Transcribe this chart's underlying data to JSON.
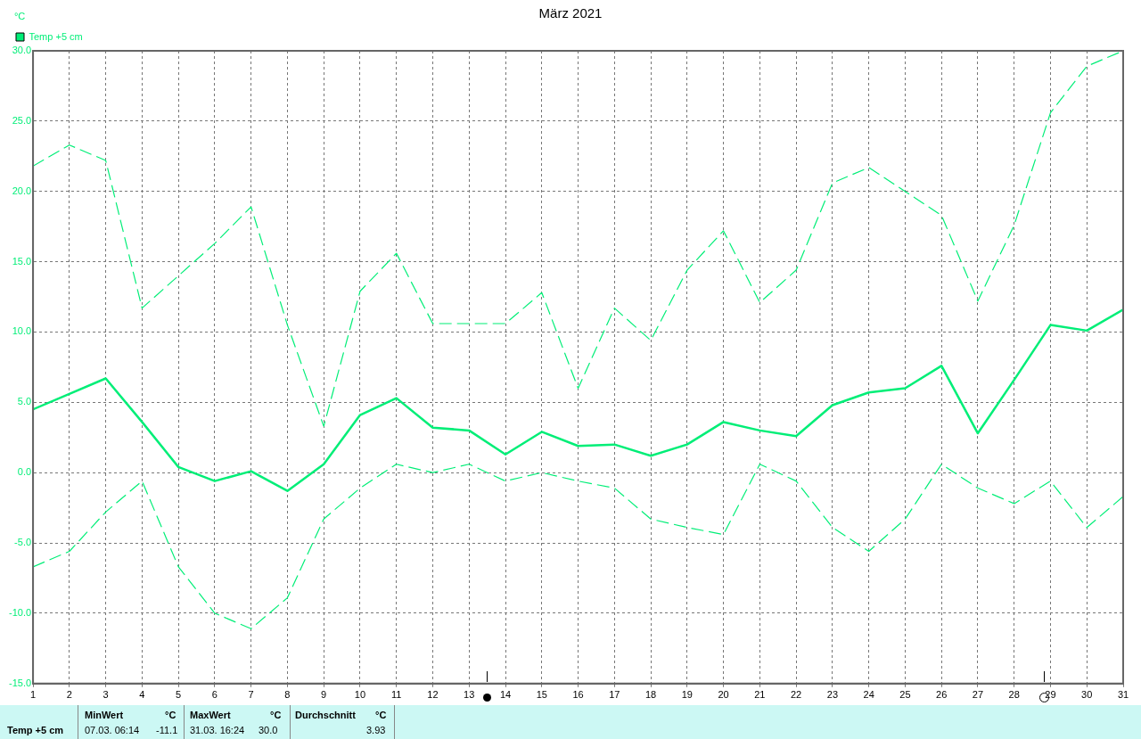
{
  "chart_data": {
    "type": "line",
    "title": "März 2021",
    "ylabel": "°C",
    "x": [
      1,
      2,
      3,
      4,
      5,
      6,
      7,
      8,
      9,
      10,
      11,
      12,
      13,
      14,
      15,
      16,
      17,
      18,
      19,
      20,
      21,
      22,
      23,
      24,
      25,
      26,
      27,
      28,
      29,
      30,
      31
    ],
    "series": [
      {
        "name": "Temp +5 cm",
        "color": "#00ee77",
        "line_style": "solid",
        "values": [
          4.5,
          5.6,
          6.7,
          3.6,
          0.4,
          -0.6,
          0.1,
          -1.3,
          0.6,
          4.1,
          5.3,
          3.2,
          3.0,
          1.3,
          2.9,
          1.9,
          2.0,
          1.2,
          2.0,
          3.6,
          3.0,
          2.6,
          4.8,
          5.7,
          6.0,
          7.6,
          2.8,
          6.6,
          10.5,
          10.1,
          11.6
        ]
      },
      {
        "color": "#00ee77",
        "line_style": "dashed",
        "values": [
          21.8,
          23.3,
          22.2,
          11.7,
          14.0,
          16.3,
          18.9,
          10.5,
          3.3,
          12.9,
          15.6,
          10.6,
          10.6,
          10.6,
          12.8,
          6.0,
          11.7,
          9.4,
          14.4,
          17.2,
          12.1,
          14.4,
          20.6,
          21.7,
          20.0,
          18.3,
          12.2,
          17.6,
          25.6,
          28.9,
          30.0
        ]
      },
      {
        "color": "#00ee77",
        "line_style": "dashed",
        "values": [
          -6.7,
          -5.6,
          -2.8,
          -0.6,
          -6.7,
          -10.0,
          -11.1,
          -8.9,
          -3.3,
          -1.1,
          0.6,
          0.0,
          0.6,
          -0.6,
          0.0,
          -0.6,
          -1.1,
          -3.3,
          -3.9,
          -4.4,
          0.6,
          -0.6,
          -3.9,
          -5.6,
          -3.3,
          0.6,
          -1.1,
          -2.2,
          -0.6,
          -3.9,
          -1.7
        ]
      }
    ],
    "xlim": [
      1,
      31
    ],
    "xticks": [
      1,
      2,
      3,
      4,
      5,
      6,
      7,
      8,
      9,
      10,
      11,
      12,
      13,
      14,
      15,
      16,
      17,
      18,
      19,
      20,
      21,
      22,
      23,
      24,
      25,
      26,
      27,
      28,
      29,
      30,
      31
    ],
    "ylim": [
      -15,
      30
    ],
    "yticks": [
      {
        "value": -15,
        "label": "-15.0"
      },
      {
        "value": -10,
        "label": "-10.0"
      },
      {
        "value": -5,
        "label": "-5.0"
      },
      {
        "value": 0,
        "label": "0.0"
      },
      {
        "value": 5,
        "label": "5.0"
      },
      {
        "value": 10,
        "label": "10.0"
      },
      {
        "value": 15,
        "label": "15.0"
      },
      {
        "value": 20,
        "label": "20.0"
      },
      {
        "value": 25,
        "label": "25.0"
      },
      {
        "value": 30,
        "label": "30.0"
      }
    ],
    "grid": true,
    "legend": "top left",
    "marker": "none",
    "annotations": [
      "Temp +5 cm",
      "MinWert",
      "°C",
      "07.03.  06:14",
      "-11.1",
      "MaxWert",
      "°C",
      "31.03.  16:24",
      "30.0",
      "Durchschnitt",
      "°C",
      "3.93"
    ]
  }
}
